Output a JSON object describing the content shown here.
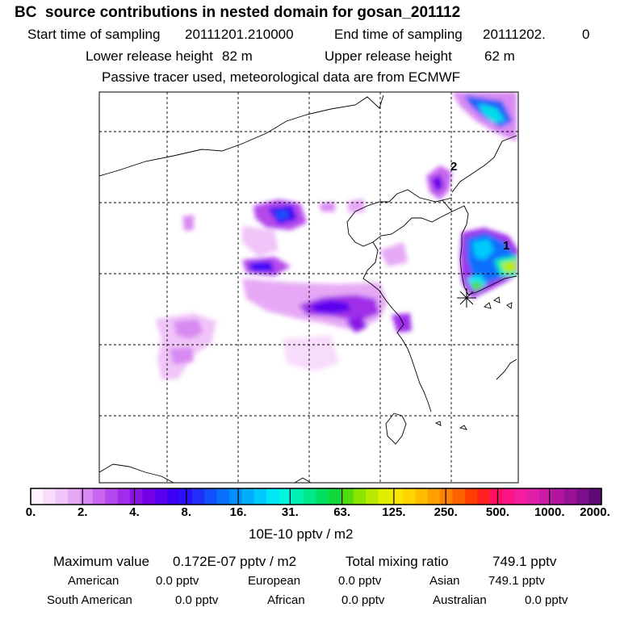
{
  "title": "BC  source contributions in nested domain for gosan_201112",
  "header": {
    "start_label": "Start time of sampling",
    "start_value": "20111201.210000",
    "end_label": "End time of sampling",
    "end_value": "20111202.",
    "end_suffix": "0",
    "lower_label": "Lower release height",
    "lower_value": "82 m",
    "upper_label": "Upper release height",
    "upper_value": "62 m",
    "tracer_note": "Passive tracer used, meteorological data are from ECMWF"
  },
  "map": {
    "annotations": [
      "2",
      "1"
    ],
    "marker": "receptor-star-icon"
  },
  "colorbar": {
    "labels": [
      "0.",
      "2.",
      "4.",
      "8.",
      "16.",
      "31.",
      "63.",
      "125.",
      "250.",
      "500.",
      "1000.",
      "2000."
    ],
    "colors": [
      "#fdf2fe",
      "#f8dcfb",
      "#f0c4f8",
      "#e6a8f5",
      "#d88af2",
      "#c866ef",
      "#b548ec",
      "#a02de9",
      "#8a14e6",
      "#7400e8",
      "#5a00f0",
      "#3b00f5",
      "#2a10f8",
      "#1f30fa",
      "#1250fb",
      "#0a70fc",
      "#0090fc",
      "#00aefc",
      "#00cbfb",
      "#00e6f6",
      "#00f5e0",
      "#00f0b4",
      "#00e88a",
      "#00e060",
      "#10d838",
      "#50dc10",
      "#8ae400",
      "#b8ea00",
      "#e0ef00",
      "#f8e800",
      "#ffd400",
      "#ffbc00",
      "#ffa000",
      "#ff8200",
      "#ff6200",
      "#ff3e00",
      "#ff2020",
      "#ff1060",
      "#ff1488",
      "#f41e9e",
      "#e01ea6",
      "#ca1aa8",
      "#b216a0",
      "#981296",
      "#7c0e8a",
      "#5e0a74"
    ],
    "unit": "10E-10 pptv / m2"
  },
  "summary": {
    "max_label": "Maximum value",
    "max_value": "0.172E-07 pptv / m2",
    "total_label": "Total mixing ratio",
    "total_value": "749.1 pptv",
    "regions": [
      {
        "name": "American",
        "value": "0.0 pptv"
      },
      {
        "name": "European",
        "value": "0.0 pptv"
      },
      {
        "name": "Asian",
        "value": "749.1 pptv"
      },
      {
        "name": "South American",
        "value": "0.0 pptv"
      },
      {
        "name": "African",
        "value": "0.0 pptv"
      },
      {
        "name": "Australian",
        "value": "0.0 pptv"
      }
    ]
  }
}
